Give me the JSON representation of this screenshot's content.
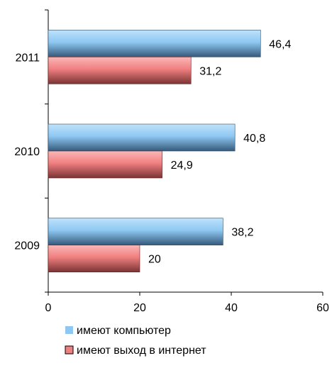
{
  "chart_data": {
    "type": "bar",
    "orientation": "horizontal",
    "categories": [
      "2011",
      "2010",
      "2009"
    ],
    "series": [
      {
        "name": "имеют компьютер",
        "values": [
          46.4,
          40.8,
          38.2
        ],
        "labels": [
          "46,4",
          "40,8",
          "38,2"
        ],
        "color": "#8ec8f2"
      },
      {
        "name": "имеют выход в интернет",
        "values": [
          31.2,
          24.9,
          20
        ],
        "labels": [
          "31,2",
          "24,9",
          "20"
        ],
        "color": "#f07f80"
      }
    ],
    "xlim": [
      0,
      60
    ],
    "xticks": [
      "0",
      "20",
      "40",
      "60"
    ],
    "grid": false,
    "legend_position": "bottom"
  }
}
